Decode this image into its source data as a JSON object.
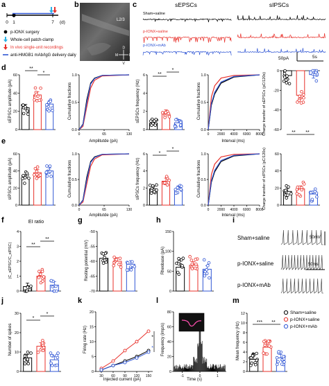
{
  "colors": {
    "sham": "#000000",
    "ionx_saline": "#e8302a",
    "ionx_mab": "#2f55d4",
    "timeline_arrow_cyan": "#2ab3e6"
  },
  "panel_letters": {
    "a": "a",
    "b": "b",
    "c": "c",
    "d": "d",
    "e": "e",
    "f": "f",
    "g": "g",
    "h": "h",
    "i": "i",
    "j": "j",
    "k": "k",
    "l": "l",
    "m": "m"
  },
  "a": {
    "ticks": [
      "0",
      "1",
      "7"
    ],
    "unit": "(d)",
    "legend": [
      {
        "label": "p-IONX surgery",
        "marker": "dot-black"
      },
      {
        "label": "Whole-cell patch-clamp",
        "marker": "arrow-cyan"
      },
      {
        "label": "In vivo single-unit recordings",
        "marker": "arrow-red"
      },
      {
        "label": "anti-HMGB1 mAb/IgG delivery daily",
        "marker": "line-blue"
      }
    ]
  },
  "b": {
    "labels": {
      "l2_3": "L2/3",
      "d": "D",
      "v": "V",
      "m": "M",
      "l": "L"
    }
  },
  "c": {
    "col1": "sEPSCs",
    "col2": "sIPSCs",
    "rows": [
      "Sham+saline",
      "p-IONX+saline",
      "p-IONX+mAb"
    ],
    "scale_amp": "50pA",
    "scale_time": "5s"
  },
  "d": {
    "ylabels": [
      "sEPSCs amplitude (pA)",
      "Cumulative fractions",
      "sEPSCs frequency (Hz)",
      "Cumulative fractions",
      "Charge transfer of sEPSCs (pC/120s)"
    ],
    "xlabels": [
      "Amplitutde (pA)",
      "Interval (ms)"
    ],
    "amp_ticks": [
      "0",
      "20",
      "40",
      "60"
    ],
    "cum_yticks": [
      "0.0",
      "0.5",
      "1.0"
    ],
    "cum_amp_xticks": [
      "0",
      "65",
      "130"
    ],
    "freq_ticks": [
      "0",
      "2",
      "4",
      "6"
    ],
    "cum_int_xticks": [
      "0",
      "2000",
      "4000",
      "6000",
      "8000"
    ],
    "charge_ticks": [
      "-60",
      "-40",
      "-20",
      "0"
    ],
    "sig": [
      "**",
      "*",
      "**",
      "*",
      "**",
      "**"
    ]
  },
  "e": {
    "ylabels": [
      "sIPSCs amplitude (pA)",
      "Cumulative fractions",
      "sIPSCs frequency (Hz)",
      "Cumulative fractions",
      "Charge transfer of sIPSCs (pC/120s)"
    ],
    "xlabels": [
      "Amplitutde (pA)",
      "Interval (ms)"
    ],
    "amp_ticks": [
      "0",
      "20",
      "40",
      "60"
    ],
    "cum_yticks": [
      "0.0",
      "0.5",
      "1.0"
    ],
    "cum_amp_xticks": [
      "0",
      "65",
      "130"
    ],
    "freq_ticks": [
      "0",
      "2",
      "4",
      "6"
    ],
    "cum_int_xticks": [
      "0",
      "2000",
      "4000",
      "6000",
      "8000"
    ],
    "charge_ticks": [
      "0",
      "20",
      "40",
      "60"
    ],
    "sig": [
      "*",
      "*"
    ]
  },
  "f": {
    "title": "EI ratio",
    "ylabel": "|C_sEPSC/C_sIPSC|",
    "ticks": [
      "0",
      "1",
      "2",
      "3",
      "4"
    ],
    "sig": [
      "**",
      "**"
    ]
  },
  "g": {
    "ylabel": "Resting potential (mV)",
    "ticks": [
      "-70",
      "-65",
      "-60",
      "-55",
      "-50"
    ]
  },
  "h": {
    "ylabel": "Rheobase (pA)",
    "ticks": [
      "0",
      "50",
      "100",
      "150"
    ]
  },
  "i": {
    "rows": [
      "Sham+saline",
      "p-IONX+saline",
      "p-IONX+mAb"
    ],
    "scale_v": "50mV",
    "scale_t": "50ms"
  },
  "j": {
    "ylabel": "Number of spikes",
    "ticks": [
      "0",
      "10",
      "20",
      "30"
    ],
    "sig": [
      "*",
      "*"
    ]
  },
  "k": {
    "ylabel": "Firing rate (Hz)",
    "xlabel": "Injected current (pA)",
    "xticks": [
      "30",
      "60",
      "90",
      "120",
      "150"
    ],
    "yticks": [
      "0",
      "5",
      "10",
      "15",
      "20"
    ],
    "sig": [
      "*",
      "*"
    ]
  },
  "l": {
    "ylabel": "Frequency (imp/s)",
    "xlabel": "Time (s)",
    "xticks": [
      "-1",
      "0",
      "1"
    ],
    "yticks": [
      "0",
      "20",
      "40",
      "60",
      "80"
    ]
  },
  "m": {
    "ylabel": "Mean frequency (Hz)",
    "ticks": [
      "0",
      "2",
      "4",
      "6",
      "8",
      "10",
      "12"
    ],
    "sig": [
      "***",
      "**"
    ]
  },
  "legend_m": [
    "Sham+saline",
    "p-IONX+saline",
    "p-IONX+mAb"
  ],
  "chart_data": [
    {
      "type": "bar",
      "panel": "d",
      "ylabel": "sEPSCs amplitude (pA)",
      "categories": [
        "Sham+saline",
        "p-IONX+saline",
        "p-IONX+mAb"
      ],
      "values": [
        24,
        38,
        28
      ],
      "ylim": [
        0,
        60
      ]
    },
    {
      "type": "line",
      "panel": "d",
      "ylabel": "Cumulative fractions",
      "xlabel": "Amplitutde (pA)",
      "xlim": [
        0,
        130
      ],
      "ylim": [
        0,
        1
      ],
      "series": [
        {
          "name": "Sham+saline",
          "x": [
            0,
            10,
            20,
            30,
            40,
            60,
            130
          ],
          "y": [
            0,
            0.1,
            0.55,
            0.85,
            0.94,
            0.99,
            1.0
          ]
        },
        {
          "name": "p-IONX+saline",
          "x": [
            0,
            10,
            20,
            30,
            40,
            60,
            130
          ],
          "y": [
            0,
            0.06,
            0.42,
            0.76,
            0.9,
            0.98,
            1.0
          ]
        },
        {
          "name": "p-IONX+mAb",
          "x": [
            0,
            10,
            20,
            30,
            40,
            60,
            130
          ],
          "y": [
            0,
            0.09,
            0.5,
            0.83,
            0.93,
            0.99,
            1.0
          ]
        }
      ]
    },
    {
      "type": "bar",
      "panel": "d",
      "ylabel": "sEPSCs frequency (Hz)",
      "categories": [
        "Sham+saline",
        "p-IONX+saline",
        "p-IONX+mAb"
      ],
      "values": [
        0.7,
        1.8,
        0.75
      ],
      "ylim": [
        0,
        6
      ]
    },
    {
      "type": "line",
      "panel": "d",
      "ylabel": "Cumulative fractions",
      "xlabel": "Interval (ms)",
      "xlim": [
        0,
        8000
      ],
      "ylim": [
        0,
        1
      ],
      "series": [
        {
          "name": "Sham+saline",
          "x": [
            0,
            500,
            1000,
            2000,
            4000,
            8000
          ],
          "y": [
            0,
            0.45,
            0.65,
            0.85,
            0.96,
            1.0
          ]
        },
        {
          "name": "p-IONX+saline",
          "x": [
            0,
            500,
            1000,
            2000,
            4000,
            8000
          ],
          "y": [
            0,
            0.6,
            0.8,
            0.94,
            0.99,
            1.0
          ]
        },
        {
          "name": "p-IONX+mAb",
          "x": [
            0,
            500,
            1000,
            2000,
            4000,
            8000
          ],
          "y": [
            0,
            0.48,
            0.68,
            0.87,
            0.97,
            1.0
          ]
        }
      ]
    },
    {
      "type": "bar",
      "panel": "d",
      "ylabel": "Charge transfer of sEPSCs (pC/120s)",
      "categories": [
        "Sham+saline",
        "p-IONX+saline",
        "p-IONX+mAb"
      ],
      "values": [
        -5,
        -25,
        -4
      ],
      "ylim": [
        -60,
        0
      ]
    },
    {
      "type": "bar",
      "panel": "e",
      "ylabel": "sIPSCs amplitude (pA)",
      "categories": [
        "Sham+saline",
        "p-IONX+saline",
        "p-IONX+mAb"
      ],
      "values": [
        32,
        38,
        40
      ],
      "ylim": [
        0,
        60
      ]
    },
    {
      "type": "bar",
      "panel": "e",
      "ylabel": "sIPSCs frequency (Hz)",
      "categories": [
        "Sham+saline",
        "p-IONX+saline",
        "p-IONX+mAb"
      ],
      "values": [
        1.9,
        2.8,
        1.9
      ],
      "ylim": [
        0,
        6
      ]
    },
    {
      "type": "bar",
      "panel": "e",
      "ylabel": "Charge transfer of sIPSCs (pC/120s)",
      "categories": [
        "Sham+saline",
        "p-IONX+saline",
        "p-IONX+mAb"
      ],
      "values": [
        16,
        19,
        13
      ],
      "ylim": [
        0,
        60
      ]
    },
    {
      "type": "bar",
      "panel": "f",
      "title": "EI ratio",
      "categories": [
        "Sham+saline",
        "p-IONX+saline",
        "p-IONX+mAb"
      ],
      "values": [
        0.3,
        1.0,
        0.4
      ],
      "ylim": [
        0,
        4
      ]
    },
    {
      "type": "bar",
      "panel": "g",
      "ylabel": "Resting potential (mV)",
      "categories": [
        "Sham+saline",
        "p-IONX+saline",
        "p-IONX+mAb"
      ],
      "values": [
        -59,
        -60,
        -61
      ],
      "ylim": [
        -70,
        -50
      ]
    },
    {
      "type": "bar",
      "panel": "h",
      "ylabel": "Rheobase (pA)",
      "categories": [
        "Sham+saline",
        "p-IONX+saline",
        "p-IONX+mAb"
      ],
      "values": [
        60,
        65,
        55
      ],
      "ylim": [
        0,
        150
      ]
    },
    {
      "type": "bar",
      "panel": "j",
      "ylabel": "Number of spikes",
      "categories": [
        "Sham+saline",
        "p-IONX+saline",
        "p-IONX+mAb"
      ],
      "values": [
        7,
        13,
        6
      ],
      "ylim": [
        0,
        30
      ]
    },
    {
      "type": "line",
      "panel": "k",
      "ylabel": "Firing rate (Hz)",
      "xlabel": "Injected current (pA)",
      "ylim": [
        0,
        20
      ],
      "x": [
        30,
        60,
        90,
        120,
        150
      ],
      "series": [
        {
          "name": "Sham+saline",
          "values": [
            0.5,
            2,
            3.5,
            5,
            7
          ]
        },
        {
          "name": "p-IONX+saline",
          "values": [
            1,
            3.5,
            7,
            10,
            13.5
          ]
        },
        {
          "name": "p-IONX+mAb",
          "values": [
            0.5,
            2,
            3,
            4.5,
            6.5
          ]
        }
      ]
    },
    {
      "type": "bar",
      "panel": "m",
      "ylabel": "Mean frequency (Hz)",
      "categories": [
        "Sham+saline",
        "p-IONX+saline",
        "p-IONX+mAb"
      ],
      "values": [
        2.5,
        5,
        2.8
      ],
      "ylim": [
        0,
        12
      ]
    }
  ]
}
